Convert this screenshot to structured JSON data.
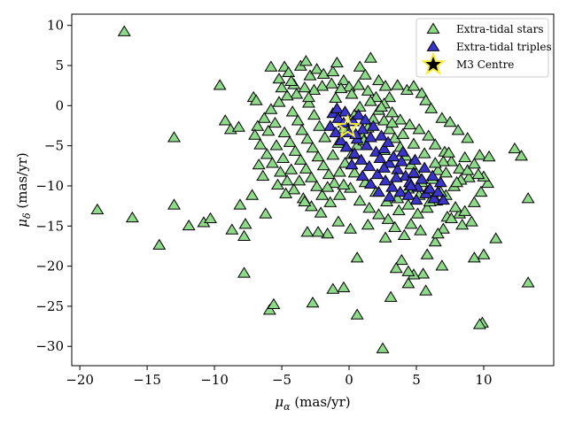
{
  "chart_data": {
    "type": "scatter",
    "title": "",
    "xlabel_symbol": "μ",
    "xlabel_sub": "α",
    "xlabel_unit": " (mas/yr)",
    "ylabel_symbol": "μ",
    "ylabel_sub": "δ",
    "ylabel_unit": " (mas/yr)",
    "xlim": [
      -20.6,
      15.2
    ],
    "ylim": [
      -32.4,
      11.4
    ],
    "xticks": [
      -20,
      -15,
      -10,
      -5,
      0,
      5,
      10
    ],
    "yticks": [
      10,
      5,
      0,
      -5,
      -10,
      -15,
      -20,
      -25,
      -30
    ],
    "grid": false,
    "legend_position": "top-right",
    "legend": [
      {
        "label": "Extra-tidal stars",
        "marker": "triangle",
        "color": "#8fd98a"
      },
      {
        "label": "Extra-tidal triples",
        "marker": "triangle",
        "color": "#3a34c8"
      },
      {
        "label": "M3 Centre",
        "marker": "star",
        "color": "#000000"
      }
    ],
    "series": [
      {
        "name": "Extra-tidal stars",
        "color": "#8fd98a",
        "edge": "#000000",
        "points": [
          [
            -16.7,
            9.2
          ],
          [
            -18.7,
            -13.0
          ],
          [
            -16.1,
            -14.0
          ],
          [
            -14.1,
            -17.4
          ],
          [
            -13.0,
            -4.0
          ],
          [
            -13.0,
            -12.4
          ],
          [
            -11.9,
            -15.0
          ],
          [
            -10.8,
            -14.6
          ],
          [
            -10.3,
            -14.1
          ],
          [
            -9.6,
            2.5
          ],
          [
            -9.2,
            -1.9
          ],
          [
            -8.8,
            -3.0
          ],
          [
            -8.2,
            -2.7
          ],
          [
            -8.7,
            -15.5
          ],
          [
            -8.1,
            -12.4
          ],
          [
            -7.8,
            -16.3
          ],
          [
            -7.7,
            -14.8
          ],
          [
            -7.8,
            -20.9
          ],
          [
            -7.1,
            1.0
          ],
          [
            -6.9,
            0.6
          ],
          [
            -7.2,
            -11.2
          ],
          [
            -6.2,
            -13.5
          ],
          [
            -5.9,
            -25.5
          ],
          [
            -5.6,
            -24.8
          ],
          [
            -5.8,
            4.8
          ],
          [
            -5.2,
            3.3
          ],
          [
            -4.8,
            4.8
          ],
          [
            -4.5,
            4.1
          ],
          [
            -4.1,
            2.6
          ],
          [
            -3.6,
            4.9
          ],
          [
            -3.2,
            5.5
          ],
          [
            -2.9,
            3.7
          ],
          [
            -2.4,
            4.5
          ],
          [
            -1.9,
            3.9
          ],
          [
            -1.2,
            4.2
          ],
          [
            -0.9,
            5.3
          ],
          [
            -0.4,
            3.1
          ],
          [
            0.8,
            4.8
          ],
          [
            1.2,
            3.8
          ],
          [
            1.6,
            5.9
          ],
          [
            2.2,
            3.1
          ],
          [
            2.7,
            2.4
          ],
          [
            3.0,
            1.0
          ],
          [
            3.6,
            2.5
          ],
          [
            4.3,
            1.9
          ],
          [
            4.8,
            2.4
          ],
          [
            5.4,
            1.5
          ],
          [
            5.7,
            0.6
          ],
          [
            6.1,
            -0.4
          ],
          [
            6.9,
            -1.6
          ],
          [
            7.5,
            -2.1
          ],
          [
            8.1,
            -3.1
          ],
          [
            8.8,
            -4.1
          ],
          [
            9.7,
            -6.2
          ],
          [
            10.4,
            -6.4
          ],
          [
            12.3,
            -5.4
          ],
          [
            12.8,
            -6.3
          ],
          [
            13.3,
            -11.6
          ],
          [
            13.3,
            -22.1
          ],
          [
            10.3,
            -9.7
          ],
          [
            10.0,
            -8.9
          ],
          [
            9.9,
            -27.1
          ],
          [
            9.7,
            -27.3
          ],
          [
            10.0,
            -18.6
          ],
          [
            9.3,
            -19.0
          ],
          [
            10.9,
            -16.6
          ],
          [
            9.1,
            -14.5
          ],
          [
            8.4,
            -14.9
          ],
          [
            8.2,
            -13.5
          ],
          [
            7.9,
            -12.7
          ],
          [
            7.3,
            -13.9
          ],
          [
            7.0,
            -15.4
          ],
          [
            6.4,
            -17.0
          ],
          [
            6.9,
            -20.0
          ],
          [
            5.8,
            -18.6
          ],
          [
            5.5,
            -21.0
          ],
          [
            5.7,
            -23.1
          ],
          [
            4.8,
            -21.1
          ],
          [
            4.4,
            -20.7
          ],
          [
            4.4,
            -22.2
          ],
          [
            3.9,
            -19.3
          ],
          [
            3.5,
            -20.3
          ],
          [
            3.1,
            -23.9
          ],
          [
            2.5,
            -30.3
          ],
          [
            0.6,
            -26.1
          ],
          [
            -0.4,
            -22.7
          ],
          [
            -1.2,
            -22.9
          ],
          [
            0.6,
            -19.0
          ],
          [
            -1.6,
            -16.0
          ],
          [
            -2.3,
            -15.8
          ],
          [
            -3.1,
            -15.8
          ],
          [
            -2.7,
            -24.6
          ],
          [
            -0.8,
            -14.5
          ],
          [
            0.1,
            -15.4
          ],
          [
            1.4,
            -14.9
          ],
          [
            2.7,
            -16.5
          ],
          [
            3.4,
            -15.2
          ],
          [
            4.1,
            -16.2
          ],
          [
            4.6,
            -14.8
          ],
          [
            5.3,
            -15.6
          ],
          [
            6.6,
            -16.0
          ],
          [
            7.6,
            -14.1
          ],
          [
            8.6,
            -13.2
          ],
          [
            9.3,
            -12.1
          ],
          [
            9.8,
            -10.8
          ],
          [
            8.9,
            -9.0
          ],
          [
            8.2,
            -7.9
          ],
          [
            7.6,
            -7.0
          ],
          [
            7.1,
            -5.8
          ],
          [
            6.4,
            -4.9
          ],
          [
            5.9,
            -3.8
          ],
          [
            5.2,
            -3.0
          ],
          [
            4.5,
            -2.4
          ],
          [
            3.8,
            -1.8
          ],
          [
            3.2,
            -0.9
          ],
          [
            2.6,
            0.2
          ],
          [
            2.0,
            1.0
          ],
          [
            1.4,
            1.8
          ],
          [
            0.7,
            2.5
          ],
          [
            0.0,
            2.3
          ],
          [
            -0.6,
            2.1
          ],
          [
            -1.3,
            2.7
          ],
          [
            -2.0,
            2.4
          ],
          [
            -2.6,
            1.9
          ],
          [
            -3.3,
            2.2
          ],
          [
            -3.9,
            1.4
          ],
          [
            -4.6,
            1.2
          ],
          [
            -5.2,
            0.4
          ],
          [
            -5.8,
            -0.5
          ],
          [
            -6.3,
            -1.6
          ],
          [
            -6.8,
            -2.6
          ],
          [
            -7.0,
            -3.7
          ],
          [
            -6.6,
            -4.9
          ],
          [
            -6.1,
            -6.1
          ],
          [
            -5.7,
            -7.2
          ],
          [
            -5.1,
            -8.3
          ],
          [
            -4.6,
            -9.4
          ],
          [
            -4.1,
            -10.5
          ],
          [
            -3.4,
            -11.6
          ],
          [
            -2.8,
            -12.6
          ],
          [
            -2.1,
            -13.4
          ],
          [
            -1.4,
            -12.1
          ],
          [
            -0.7,
            -11.2
          ],
          [
            0.1,
            -10.3
          ],
          [
            0.8,
            -11.9
          ],
          [
            1.5,
            -12.8
          ],
          [
            2.2,
            -13.6
          ],
          [
            2.9,
            -14.2
          ],
          [
            3.7,
            -13.1
          ],
          [
            4.4,
            -12.4
          ],
          [
            5.1,
            -13.5
          ],
          [
            5.8,
            -12.8
          ],
          [
            6.5,
            -11.9
          ],
          [
            7.2,
            -11.2
          ],
          [
            7.8,
            -10.1
          ],
          [
            8.3,
            -9.3
          ],
          [
            8.8,
            -8.1
          ],
          [
            9.3,
            -7.3
          ],
          [
            9.6,
            -8.6
          ],
          [
            8.6,
            -6.5
          ],
          [
            -4.2,
            -0.8
          ],
          [
            -3.8,
            -1.9
          ],
          [
            -3.5,
            -3.1
          ],
          [
            -3.1,
            -4.2
          ],
          [
            -2.7,
            -5.3
          ],
          [
            -2.3,
            -6.4
          ],
          [
            -1.9,
            -7.5
          ],
          [
            -1.5,
            -8.6
          ],
          [
            -1.1,
            -9.7
          ],
          [
            -0.7,
            -8.3
          ],
          [
            -0.3,
            -7.2
          ],
          [
            0.2,
            -6.1
          ],
          [
            0.6,
            -5.0
          ],
          [
            1.0,
            -3.9
          ],
          [
            1.4,
            -2.8
          ],
          [
            1.8,
            -1.7
          ],
          [
            2.2,
            -0.6
          ],
          [
            2.6,
            -1.9
          ],
          [
            3.0,
            -3.0
          ],
          [
            3.4,
            -4.1
          ],
          [
            3.8,
            -5.2
          ],
          [
            4.2,
            -6.3
          ],
          [
            4.6,
            -7.4
          ],
          [
            5.0,
            -8.5
          ],
          [
            5.4,
            -9.6
          ],
          [
            5.8,
            -10.7
          ],
          [
            6.2,
            -9.2
          ],
          [
            6.6,
            -8.1
          ],
          [
            7.0,
            -7.0
          ],
          [
            7.4,
            -5.9
          ],
          [
            -4.8,
            -3.4
          ],
          [
            -4.4,
            -4.6
          ],
          [
            -4.0,
            -5.7
          ],
          [
            -3.6,
            -6.8
          ],
          [
            -3.2,
            -7.9
          ],
          [
            -2.8,
            -9.0
          ],
          [
            -2.4,
            -10.1
          ],
          [
            -2.0,
            -11.2
          ],
          [
            -1.6,
            -10.2
          ],
          [
            -1.2,
            -6.2
          ],
          [
            -0.8,
            -4.7
          ],
          [
            -0.4,
            -2.9
          ],
          [
            0.4,
            -1.2
          ],
          [
            0.8,
            -0.2
          ],
          [
            1.6,
            0.5
          ],
          [
            2.4,
            -0.2
          ],
          [
            3.2,
            -2.2
          ],
          [
            4.0,
            -3.6
          ],
          [
            4.8,
            -4.8
          ],
          [
            5.6,
            -6.0
          ],
          [
            6.4,
            -7.2
          ],
          [
            7.2,
            -8.4
          ],
          [
            8.0,
            -9.6
          ],
          [
            6.8,
            -10.8
          ],
          [
            6.0,
            -12.0
          ],
          [
            5.2,
            -11.2
          ],
          [
            4.4,
            -10.4
          ],
          [
            3.6,
            -11.6
          ],
          [
            2.8,
            -12.0
          ],
          [
            2.0,
            -10.8
          ],
          [
            1.2,
            -9.6
          ],
          [
            0.4,
            -8.4
          ],
          [
            -0.4,
            -9.9
          ],
          [
            -1.8,
            -4.0
          ],
          [
            -2.2,
            -2.6
          ],
          [
            -2.6,
            -1.2
          ],
          [
            -3.0,
            0.3
          ],
          [
            -1.0,
            0.9
          ],
          [
            0.2,
            1.4
          ],
          [
            1.1,
            -4.4
          ],
          [
            2.6,
            -5.6
          ],
          [
            -5.5,
            -2.2
          ],
          [
            -6.0,
            -3.2
          ],
          [
            -5.4,
            -5.0
          ],
          [
            -4.9,
            -6.6
          ],
          [
            -4.3,
            -8.0
          ],
          [
            -3.7,
            -9.4
          ],
          [
            -3.3,
            -12.0
          ],
          [
            -4.7,
            -11.0
          ],
          [
            -5.3,
            -9.9
          ],
          [
            -6.4,
            -8.8
          ],
          [
            -6.7,
            -7.4
          ],
          [
            -5.0,
            2.2
          ],
          [
            -4.3,
            3.0
          ],
          [
            -3.0,
            1.0
          ]
        ]
      },
      {
        "name": "Extra-tidal triples",
        "color": "#3a34c8",
        "edge": "#000000",
        "points": [
          [
            -1.2,
            -1.0
          ],
          [
            -0.8,
            -1.6
          ],
          [
            -0.4,
            -2.2
          ],
          [
            0.0,
            -3.4
          ],
          [
            0.3,
            -2.0
          ],
          [
            0.6,
            -4.2
          ],
          [
            1.0,
            -3.0
          ],
          [
            1.3,
            -5.0
          ],
          [
            1.6,
            -4.0
          ],
          [
            2.0,
            -5.8
          ],
          [
            2.3,
            -6.6
          ],
          [
            2.6,
            -5.4
          ],
          [
            3.0,
            -7.2
          ],
          [
            3.3,
            -6.4
          ],
          [
            3.6,
            -8.0
          ],
          [
            3.9,
            -7.0
          ],
          [
            4.2,
            -8.8
          ],
          [
            4.5,
            -9.6
          ],
          [
            4.8,
            -8.4
          ],
          [
            5.1,
            -10.2
          ],
          [
            5.4,
            -9.2
          ],
          [
            5.7,
            -11.0
          ],
          [
            6.0,
            -10.4
          ],
          [
            6.3,
            -11.6
          ],
          [
            6.6,
            -10.8
          ],
          [
            -1.4,
            -2.6
          ],
          [
            -1.0,
            -3.4
          ],
          [
            -0.6,
            -4.4
          ],
          [
            -0.2,
            -5.2
          ],
          [
            0.4,
            -6.0
          ],
          [
            0.9,
            -6.8
          ],
          [
            1.5,
            -7.6
          ],
          [
            2.1,
            -8.6
          ],
          [
            2.7,
            -9.4
          ],
          [
            3.2,
            -10.2
          ],
          [
            3.8,
            -10.8
          ],
          [
            4.4,
            -11.2
          ],
          [
            5.0,
            -11.8
          ],
          [
            1.8,
            -2.6
          ],
          [
            2.4,
            -3.8
          ],
          [
            -0.9,
            -0.4
          ],
          [
            0.7,
            -1.2
          ],
          [
            1.2,
            -1.8
          ],
          [
            2.9,
            -4.6
          ],
          [
            4.0,
            -5.8
          ],
          [
            4.9,
            -6.8
          ],
          [
            5.6,
            -7.8
          ],
          [
            6.2,
            -8.8
          ],
          [
            6.8,
            -9.6
          ],
          [
            7.0,
            -11.8
          ],
          [
            0.2,
            -7.4
          ],
          [
            1.0,
            -8.8
          ],
          [
            2.2,
            -10.8
          ],
          [
            3.0,
            -11.4
          ],
          [
            1.6,
            -9.8
          ],
          [
            -0.3,
            -0.8
          ],
          [
            0.5,
            -3.6
          ],
          [
            2.6,
            -7.8
          ],
          [
            3.5,
            -9.0
          ],
          [
            4.6,
            -10.0
          ]
        ]
      }
    ],
    "center": {
      "name": "M3 Centre",
      "x": -0.1,
      "y": -2.7
    }
  }
}
